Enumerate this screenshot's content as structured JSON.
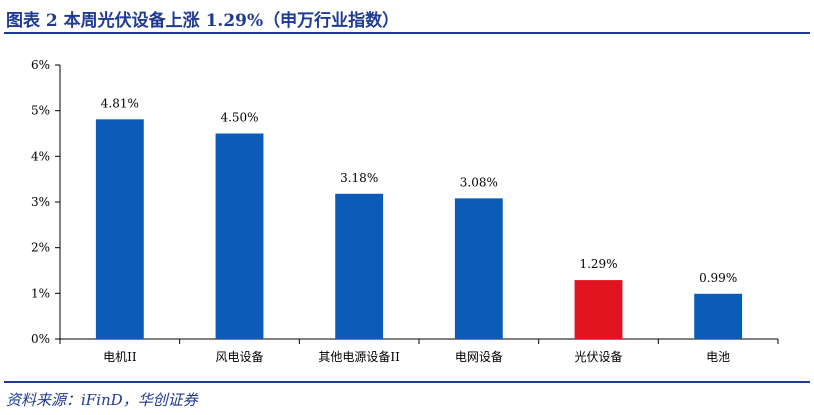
{
  "figure": {
    "title": "图表 2   本周光伏设备上涨 1.29%（申万行业指数）",
    "source": "资料来源：iFinD，华创证券"
  },
  "colors": {
    "title": "#1f3a93",
    "bar_default": "#0a5cb8",
    "bar_highlight": "#e0141e",
    "axis": "#000000"
  },
  "chart_data": {
    "type": "bar",
    "categories": [
      "电机II",
      "风电设备",
      "其他电源设备II",
      "电网设备",
      "光伏设备",
      "电池"
    ],
    "values": [
      4.81,
      4.5,
      3.18,
      3.08,
      1.29,
      0.99
    ],
    "data_labels": [
      "4.81%",
      "4.50%",
      "3.18%",
      "3.08%",
      "1.29%",
      "0.99%"
    ],
    "highlight_category": "光伏设备",
    "ylim": [
      0,
      6
    ],
    "yticks": [
      0,
      1,
      2,
      3,
      4,
      5,
      6
    ],
    "ytick_labels": [
      "0%",
      "1%",
      "2%",
      "3%",
      "4%",
      "5%",
      "6%"
    ],
    "grid": false,
    "legend": "none",
    "title": "",
    "xlabel": "",
    "ylabel": ""
  }
}
